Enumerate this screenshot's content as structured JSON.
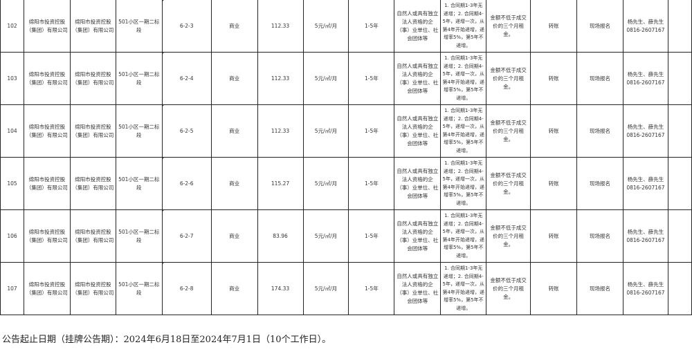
{
  "rows": [
    {
      "no": "102",
      "owner": "绵阳市投资控股（集团）有限公司",
      "operator": "绵阳市投资控股（集团）有限公司",
      "project": "501小区一期二标段",
      "unit": "6-2-3",
      "use": "商业",
      "area": "112.33",
      "price": "5元/㎡/月",
      "term": "1-5年",
      "qualification": "自然人或具有独立法人资格的企（事）业单位、社会团体等",
      "increase": "1. 合同期1-3年无递增；2. 合同期4-5年，递增一次，从第4年开始递增，递增率5%，第5年不递增。",
      "deposit": "金额不低于成交价的三个月租金。",
      "payment": "转账",
      "registration": "现场报名",
      "contact": "杨先生、薛先生 0816-2607167"
    },
    {
      "no": "103",
      "owner": "绵阳市投资控股（集团）有限公司",
      "operator": "绵阳市投资控股（集团）有限公司",
      "project": "501小区一期二标段",
      "unit": "6-2-4",
      "use": "商业",
      "area": "112.33",
      "price": "5元/㎡/月",
      "term": "1-5年",
      "qualification": "自然人或具有独立法人资格的企（事）业单位、社会团体等",
      "increase": "1. 合同期1-3年无递增；2. 合同期4-5年，递增一次，从第4年开始递增，递增率5%，第5年不递增。",
      "deposit": "金额不低于成交价的三个月租金。",
      "payment": "转账",
      "registration": "现场报名",
      "contact": "杨先生、薛先生 0816-2607167"
    },
    {
      "no": "104",
      "owner": "绵阳市投资控股（集团）有限公司",
      "operator": "绵阳市投资控股（集团）有限公司",
      "project": "501小区一期二标段",
      "unit": "6-2-5",
      "use": "商业",
      "area": "112.33",
      "price": "5元/㎡/月",
      "term": "1-5年",
      "qualification": "自然人或具有独立法人资格的企（事）业单位、社会团体等",
      "increase": "1. 合同期1-3年无递增；2. 合同期4-5年，递增一次，从第4年开始递增，递增率5%，第5年不递增。",
      "deposit": "金额不低于成交价的三个月租金。",
      "payment": "转账",
      "registration": "现场报名",
      "contact": "杨先生、薛先生 0816-2607167"
    },
    {
      "no": "105",
      "owner": "绵阳市投资控股（集团）有限公司",
      "operator": "绵阳市投资控股（集团）有限公司",
      "project": "501小区一期二标段",
      "unit": "6-2-6",
      "use": "商业",
      "area": "115.27",
      "price": "5元/㎡/月",
      "term": "1-5年",
      "qualification": "自然人或具有独立法人资格的企（事）业单位、社会团体等",
      "increase": "1. 合同期1-3年无递增；2. 合同期4-5年，递增一次，从第4年开始递增，递增率5%，第5年不递增。",
      "deposit": "金额不低于成交价的三个月租金。",
      "payment": "转账",
      "registration": "现场报名",
      "contact": "杨先生、薛先生 0816-2607167"
    },
    {
      "no": "106",
      "owner": "绵阳市投资控股（集团）有限公司",
      "operator": "绵阳市投资控股（集团）有限公司",
      "project": "501小区一期二标段",
      "unit": "6-2-7",
      "use": "商业",
      "area": "83.96",
      "price": "5元/㎡/月",
      "term": "1-5年",
      "qualification": "自然人或具有独立法人资格的企（事）业单位、社会团体等",
      "increase": "1. 合同期1-3年无递增；2. 合同期4-5年，递增一次，从第4年开始递增，递增率5%，第5年不递增。",
      "deposit": "金额不低于成交价的三个月租金。",
      "payment": "转账",
      "registration": "现场报名",
      "contact": "杨先生、薛先生 0816-2607167"
    },
    {
      "no": "107",
      "owner": "绵阳市投资控股（集团）有限公司",
      "operator": "绵阳市投资控股（集团）有限公司",
      "project": "501小区一期二标段",
      "unit": "6-2-8",
      "use": "商业",
      "area": "174.33",
      "price": "5元/㎡/月",
      "term": "1-5年",
      "qualification": "自然人或具有独立法人资格的企（事）业单位、社会团体等",
      "increase": "1. 合同期1-3年无递增；2. 合同期4-5年，递增一次，从第4年开始递增，递增率5%，第5年不递增。",
      "deposit": "金额不低于成交价的三个月租金。",
      "payment": "转账",
      "registration": "现场报名",
      "contact": "杨先生、薛先生 0816-2607167"
    }
  ],
  "footer": "公告起止日期（挂牌公告期）：2024年6月18日至2024年7月1日（10个工作日）。"
}
